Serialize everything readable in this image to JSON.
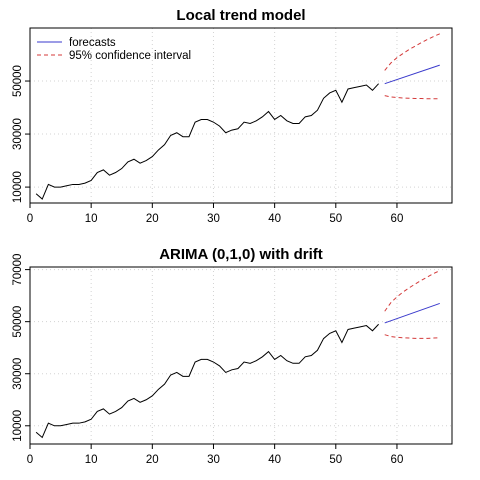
{
  "chart_data": [
    {
      "type": "line",
      "title": "Local trend model",
      "xlabel": "",
      "ylabel": "",
      "xlim": [
        0,
        69
      ],
      "ylim": [
        4000,
        70000
      ],
      "xticks": [
        0,
        10,
        20,
        30,
        40,
        50,
        60
      ],
      "yticks": [
        10000,
        30000,
        50000
      ],
      "grid": true,
      "legend": {
        "placement": "top-left",
        "entries": [
          "forecasts",
          "95% confidence interval"
        ]
      },
      "series": [
        {
          "name": "",
          "color": "#000000",
          "style": "solid",
          "x": [
            1,
            2,
            3,
            4,
            5,
            6,
            7,
            8,
            9,
            10,
            11,
            12,
            13,
            14,
            15,
            16,
            17,
            18,
            19,
            20,
            21,
            22,
            23,
            24,
            25,
            26,
            27,
            28,
            29,
            30,
            31,
            32,
            33,
            34,
            35,
            36,
            37,
            38,
            39,
            40,
            41,
            42,
            43,
            44,
            45,
            46,
            47,
            48,
            49,
            50,
            51,
            52,
            53,
            54,
            55,
            56,
            57
          ],
          "y": [
            7500,
            5500,
            11000,
            10000,
            10000,
            10500,
            11000,
            11000,
            11500,
            12500,
            15500,
            16500,
            14500,
            15500,
            17000,
            19500,
            20500,
            19000,
            20000,
            21500,
            24000,
            26000,
            29500,
            30500,
            29000,
            29000,
            34500,
            35500,
            35500,
            34500,
            33000,
            30500,
            31500,
            32000,
            34500,
            34000,
            35000,
            36500,
            38500,
            35500,
            37000,
            35000,
            34000,
            34000,
            36500,
            37000,
            39000,
            43500,
            45500,
            46500,
            42000,
            47000,
            47500,
            48000,
            48500,
            46500,
            49000
          ]
        },
        {
          "name": "forecasts",
          "color": "#3a3acc",
          "style": "solid",
          "x": [
            58,
            67
          ],
          "y": [
            49000,
            56000
          ]
        },
        {
          "name": "95% confidence interval",
          "color": "#d43a3a",
          "style": "dashed",
          "x": [
            58,
            59,
            60,
            61,
            62,
            63,
            64,
            65,
            66,
            67
          ],
          "y": [
            54000,
            56800,
            58800,
            60400,
            61900,
            63200,
            64500,
            65700,
            66800,
            67800
          ]
        },
        {
          "name": "95% confidence interval",
          "color": "#d43a3a",
          "style": "dashed",
          "x": [
            58,
            59,
            60,
            61,
            62,
            63,
            64,
            65,
            66,
            67
          ],
          "y": [
            44500,
            44000,
            43800,
            43600,
            43500,
            43400,
            43400,
            43300,
            43300,
            43300
          ]
        }
      ]
    },
    {
      "type": "line",
      "title": "ARIMA (0,1,0) with drift",
      "xlabel": "",
      "ylabel": "",
      "xlim": [
        0,
        69
      ],
      "ylim": [
        3000,
        71000
      ],
      "xticks": [
        0,
        10,
        20,
        30,
        40,
        50,
        60
      ],
      "yticks": [
        10000,
        30000,
        50000,
        70000
      ],
      "grid": true,
      "legend": null,
      "series": [
        {
          "name": "",
          "color": "#000000",
          "style": "solid",
          "x": [
            1,
            2,
            3,
            4,
            5,
            6,
            7,
            8,
            9,
            10,
            11,
            12,
            13,
            14,
            15,
            16,
            17,
            18,
            19,
            20,
            21,
            22,
            23,
            24,
            25,
            26,
            27,
            28,
            29,
            30,
            31,
            32,
            33,
            34,
            35,
            36,
            37,
            38,
            39,
            40,
            41,
            42,
            43,
            44,
            45,
            46,
            47,
            48,
            49,
            50,
            51,
            52,
            53,
            54,
            55,
            56,
            57
          ],
          "y": [
            7500,
            5500,
            11000,
            10000,
            10000,
            10500,
            11000,
            11000,
            11500,
            12500,
            15500,
            16500,
            14500,
            15500,
            17000,
            19500,
            20500,
            19000,
            20000,
            21500,
            24000,
            26000,
            29500,
            30500,
            29000,
            29000,
            34500,
            35500,
            35500,
            34500,
            33000,
            30500,
            31500,
            32000,
            34500,
            34000,
            35000,
            36500,
            38500,
            35500,
            37000,
            35000,
            34000,
            34000,
            36500,
            37000,
            39000,
            43500,
            45500,
            46500,
            42000,
            47000,
            47500,
            48000,
            48500,
            46500,
            49000
          ]
        },
        {
          "name": "forecasts",
          "color": "#3a3acc",
          "style": "solid",
          "x": [
            58,
            67
          ],
          "y": [
            49500,
            57000
          ]
        },
        {
          "name": "95% confidence interval",
          "color": "#d43a3a",
          "style": "dashed",
          "x": [
            58,
            59,
            60,
            61,
            62,
            63,
            64,
            65,
            66,
            67
          ],
          "y": [
            54000,
            57300,
            59500,
            61400,
            63000,
            64500,
            65900,
            67200,
            68500,
            69600
          ]
        },
        {
          "name": "95% confidence interval",
          "color": "#d43a3a",
          "style": "dashed",
          "x": [
            58,
            59,
            60,
            61,
            62,
            63,
            64,
            65,
            66,
            67
          ],
          "y": [
            45000,
            44300,
            44000,
            43800,
            43700,
            43600,
            43600,
            43600,
            43700,
            43800
          ]
        }
      ]
    }
  ]
}
